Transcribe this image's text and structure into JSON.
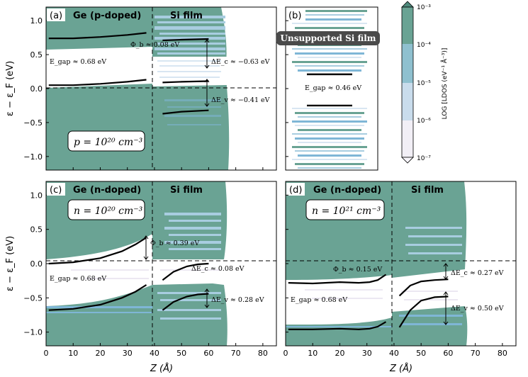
{
  "figure": {
    "ylabel": "ε − ε_F (eV)",
    "xlabel": "Z (Å)",
    "colorbar_label": "LOG [LDOS (eV⁻¹ Å⁻³)]",
    "colorbar_ticks": [
      "10⁻³",
      "10⁻⁴",
      "10⁻⁵",
      "10⁻⁶",
      "10⁻⁷"
    ],
    "colors": {
      "dense": "#6aa394",
      "mid": "#a8cde0",
      "light": "#d8e6f2",
      "faint": "#ece8f2",
      "band": "#7fb6d6",
      "curve": "#000000"
    }
  },
  "chart_data": [
    {
      "panel": "(a)",
      "type": "heatmap",
      "left_title": "Ge (p-doped)",
      "right_title": "Si film",
      "box_label": "p = 10²⁰ cm⁻³",
      "xlim": [
        0,
        85
      ],
      "ylim": [
        -1.2,
        1.2
      ],
      "interface_z": 38,
      "xticks": [],
      "yticks": [
        "1.0",
        "0.5",
        "0.0",
        "−0.5",
        "−1.0"
      ],
      "annotations": [
        "Φ_b ≈ 0.08 eV",
        "E_gap ≈ 0.68 eV",
        "ΔE_c ≈ −0.63 eV",
        "ΔE_v ≈ −0.41 eV"
      ],
      "curves": [
        {
          "name": "Ge CBM",
          "x": [
            1,
            10,
            20,
            30,
            37
          ],
          "y": [
            0.74,
            0.74,
            0.76,
            0.79,
            0.82
          ]
        },
        {
          "name": "Ge VBM",
          "x": [
            1,
            10,
            20,
            30,
            37
          ],
          "y": [
            0.05,
            0.05,
            0.07,
            0.1,
            0.13
          ]
        },
        {
          "name": "Si CBM",
          "x": [
            43,
            50,
            60
          ],
          "y": [
            0.71,
            0.72,
            0.73
          ]
        },
        {
          "name": "Si VBM upper",
          "x": [
            43,
            50,
            60
          ],
          "y": [
            0.09,
            0.1,
            0.11
          ]
        },
        {
          "name": "Si VBM lower",
          "x": [
            43,
            50,
            60
          ],
          "y": [
            -0.37,
            -0.34,
            -0.32
          ]
        }
      ]
    },
    {
      "panel": "(b)",
      "type": "heatmap",
      "badge": "Unsupported Si film",
      "ylim": [
        -1.2,
        1.2
      ],
      "annotations": [
        "E_gap ≈ 0.46 eV"
      ],
      "levels": [
        0.21,
        -0.25
      ]
    },
    {
      "panel": "(c)",
      "type": "heatmap",
      "left_title": "Ge (n-doped)",
      "right_title": "Si film",
      "box_label": "n = 10²⁰ cm⁻³",
      "xlim": [
        0,
        85
      ],
      "ylim": [
        -1.2,
        1.2
      ],
      "interface_z": 38,
      "xticks": [
        "0",
        "10",
        "20",
        "30",
        "40",
        "50",
        "60",
        "70",
        "80"
      ],
      "yticks": [
        "1.0",
        "0.5",
        "0.0",
        "−0.5",
        "−1.0"
      ],
      "annotations": [
        "Φ_b ≈ 0.39 eV",
        "E_gap ≈ 0.68 eV",
        "ΔE_c ≈ 0.08 eV",
        "ΔE_v ≈ 0.28 eV"
      ],
      "curves": [
        {
          "name": "Ge CBM",
          "x": [
            1,
            10,
            20,
            28,
            33,
            37
          ],
          "y": [
            0.0,
            0.02,
            0.08,
            0.18,
            0.28,
            0.38
          ]
        },
        {
          "name": "Ge VBM",
          "x": [
            1,
            10,
            20,
            28,
            33,
            37
          ],
          "y": [
            -0.68,
            -0.66,
            -0.6,
            -0.5,
            -0.41,
            -0.31
          ]
        },
        {
          "name": "Si CBM",
          "x": [
            43,
            47,
            52,
            56,
            60
          ],
          "y": [
            -0.24,
            -0.12,
            -0.04,
            -0.01,
            0.0
          ]
        },
        {
          "name": "Si VBM",
          "x": [
            43,
            47,
            52,
            56,
            60
          ],
          "y": [
            -0.68,
            -0.56,
            -0.48,
            -0.45,
            -0.44
          ]
        }
      ]
    },
    {
      "panel": "(d)",
      "type": "heatmap",
      "left_title": "Ge (n-doped)",
      "right_title": "Si film",
      "box_label": "n = 10²¹ cm⁻³",
      "xlim": [
        0,
        85
      ],
      "ylim": [
        -1.2,
        1.2
      ],
      "interface_z": 38,
      "xticks": [
        "0",
        "10",
        "20",
        "30",
        "40",
        "50",
        "60",
        "70",
        "80"
      ],
      "yticks": [],
      "annotations": [
        "Φ_b ≈ 0.15 eV",
        "E_gap ≈ 0.68 eV",
        "ΔE_c ≈ 0.27 eV",
        "ΔE_v ≈ 0.50 eV"
      ],
      "curves": [
        {
          "name": "Ge CBM",
          "x": [
            1,
            10,
            20,
            27,
            31,
            34,
            37
          ],
          "y": [
            -0.28,
            -0.29,
            -0.27,
            -0.28,
            -0.27,
            -0.24,
            -0.16
          ]
        },
        {
          "name": "Ge VBM",
          "x": [
            1,
            10,
            20,
            27,
            31,
            34,
            37
          ],
          "y": [
            -0.96,
            -0.96,
            -0.95,
            -0.96,
            -0.95,
            -0.92,
            -0.85
          ]
        },
        {
          "name": "Si CBM",
          "x": [
            42,
            46,
            50,
            55,
            60
          ],
          "y": [
            -0.47,
            -0.32,
            -0.26,
            -0.24,
            -0.23
          ]
        },
        {
          "name": "Si VBM",
          "x": [
            42,
            46,
            50,
            55,
            60
          ],
          "y": [
            -0.93,
            -0.68,
            -0.54,
            -0.49,
            -0.48
          ]
        }
      ]
    }
  ]
}
